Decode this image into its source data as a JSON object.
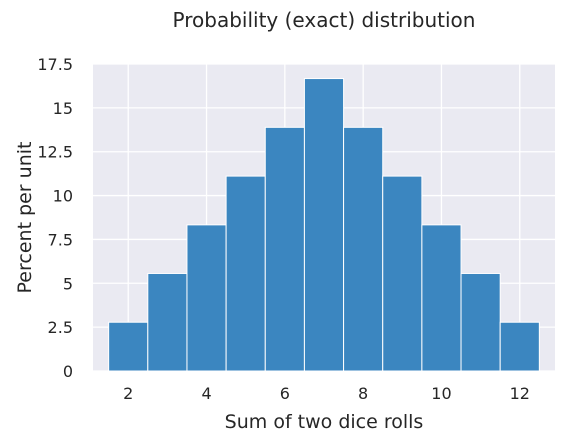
{
  "chart_data": {
    "type": "bar",
    "title": "Probability (exact) distribution",
    "xlabel": "Sum of two dice rolls",
    "ylabel": "Percent per unit",
    "categories": [
      2,
      3,
      4,
      5,
      6,
      7,
      8,
      9,
      10,
      11,
      12
    ],
    "values": [
      2.78,
      5.56,
      8.33,
      11.11,
      13.89,
      16.67,
      13.89,
      11.11,
      8.33,
      5.56,
      2.78
    ],
    "xlim": [
      1.1,
      12.9
    ],
    "ylim": [
      0,
      17.5
    ],
    "xticks": [
      2,
      4,
      6,
      8,
      10,
      12
    ],
    "xtick_labels": [
      "2",
      "4",
      "6",
      "8",
      "10",
      "12"
    ],
    "yticks": [
      0,
      2.5,
      5,
      7.5,
      10,
      12.5,
      15,
      17.5
    ],
    "ytick_labels": [
      "0",
      "2.5",
      "5",
      "7.5",
      "10",
      "12.5",
      "15",
      "17.5"
    ],
    "grid": true,
    "colors": {
      "bar": "#3b86c0",
      "plot_background": "#eaeaf2",
      "grid": "#ffffff",
      "text": "#262626"
    }
  }
}
